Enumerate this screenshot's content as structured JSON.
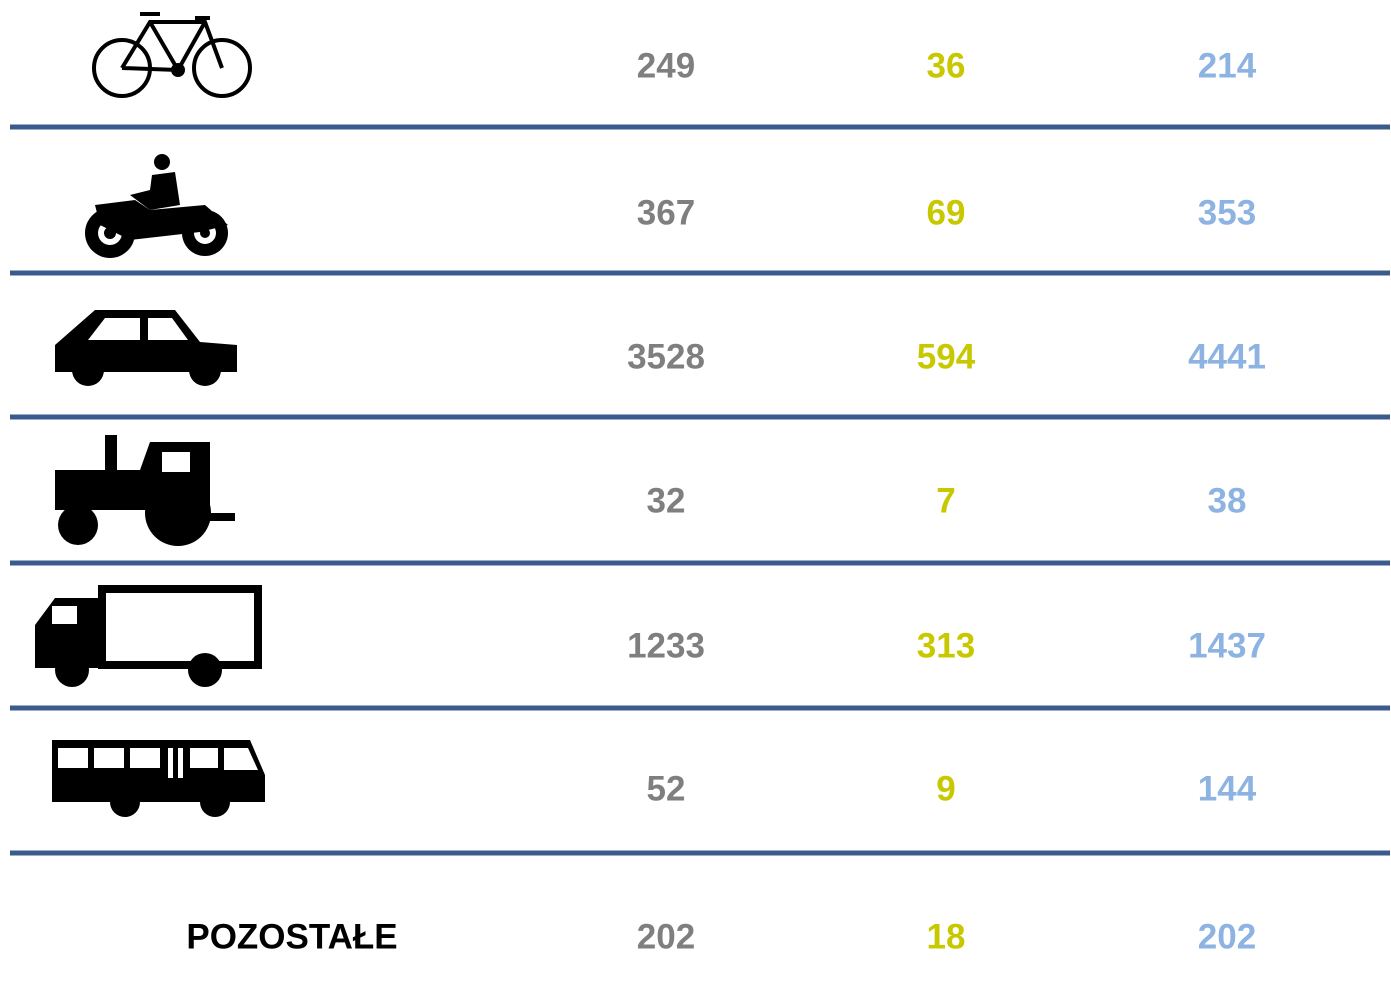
{
  "table": {
    "rows": [
      {
        "values": [
          249,
          36,
          214
        ]
      },
      {
        "values": [
          367,
          69,
          353
        ]
      },
      {
        "values": [
          3528,
          594,
          4441
        ]
      },
      {
        "values": [
          32,
          7,
          38
        ]
      },
      {
        "values": [
          1233,
          313,
          1437
        ]
      },
      {
        "values": [
          52,
          9,
          144
        ]
      },
      {
        "label": "POZOSTAŁE",
        "values": [
          202,
          18,
          202
        ]
      }
    ]
  }
}
